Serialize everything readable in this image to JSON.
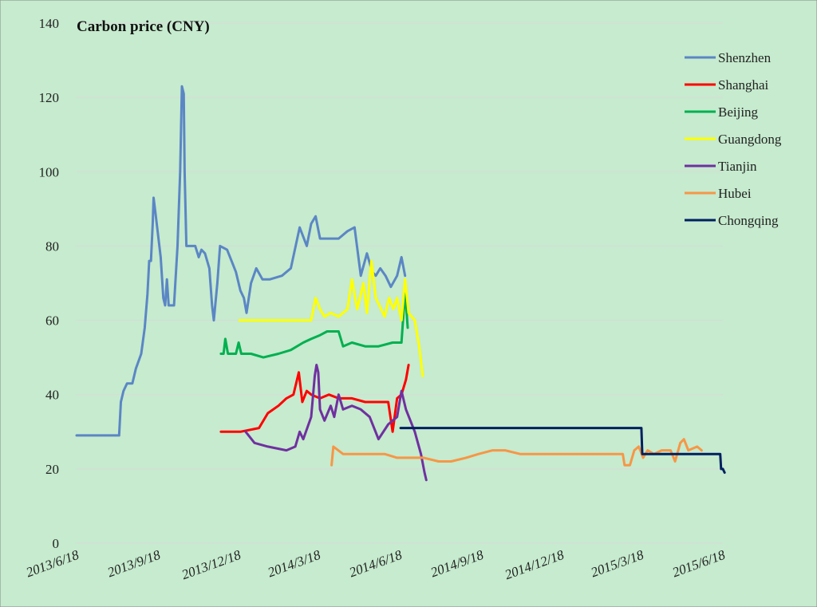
{
  "chart_data": {
    "type": "line",
    "title": "Carbon price (CNY)",
    "xlabel": "",
    "ylabel": "",
    "ylim": [
      0,
      140
    ],
    "yticks": [
      "0",
      "20",
      "40",
      "60",
      "80",
      "100",
      "120",
      "140"
    ],
    "xlim": [
      "2013/6/18",
      "2015/6/18"
    ],
    "xticks": [
      "2013/6/18",
      "2013/9/18",
      "2013/12/18",
      "2014/3/18",
      "2014/6/18",
      "2014/9/18",
      "2014/12/18",
      "2015/3/18",
      "2015/6/18"
    ],
    "grid": "horizontal",
    "legend_position": "top-right",
    "background_color": "#C6EBCE",
    "series": [
      {
        "name": "Shenzhen",
        "color": "#5B86C5",
        "points": [
          [
            "2013/6/18",
            29
          ],
          [
            "2013/8/5",
            29
          ],
          [
            "2013/8/7",
            38
          ],
          [
            "2013/8/10",
            41
          ],
          [
            "2013/8/14",
            43
          ],
          [
            "2013/8/20",
            43
          ],
          [
            "2013/8/24",
            47
          ],
          [
            "2013/8/30",
            51
          ],
          [
            "2013/9/3",
            58
          ],
          [
            "2013/9/6",
            67
          ],
          [
            "2013/9/8",
            76
          ],
          [
            "2013/9/10",
            76
          ],
          [
            "2013/9/12",
            86
          ],
          [
            "2013/9/13",
            93
          ],
          [
            "2013/9/15",
            89
          ],
          [
            "2013/9/18",
            83
          ],
          [
            "2013/9/21",
            77
          ],
          [
            "2013/9/24",
            66
          ],
          [
            "2013/9/26",
            64
          ],
          [
            "2013/9/28",
            71
          ],
          [
            "2013/9/30",
            64
          ],
          [
            "2013/10/6",
            64
          ],
          [
            "2013/10/10",
            80
          ],
          [
            "2013/10/13",
            100
          ],
          [
            "2013/10/15",
            123
          ],
          [
            "2013/10/17",
            121
          ],
          [
            "2013/10/18",
            100
          ],
          [
            "2013/10/20",
            80
          ],
          [
            "2013/10/25",
            80
          ],
          [
            "2013/10/30",
            80
          ],
          [
            "2013/11/3",
            77
          ],
          [
            "2013/11/6",
            79
          ],
          [
            "2013/11/10",
            78
          ],
          [
            "2013/11/15",
            74
          ],
          [
            "2013/11/18",
            64
          ],
          [
            "2013/11/20",
            60
          ],
          [
            "2013/11/24",
            70
          ],
          [
            "2013/11/27",
            80
          ],
          [
            "2013/12/5",
            79
          ],
          [
            "2013/12/10",
            76
          ],
          [
            "2013/12/15",
            73
          ],
          [
            "2013/12/20",
            68
          ],
          [
            "2013/12/24",
            66
          ],
          [
            "2013/12/27",
            62
          ],
          [
            "2014/1/1",
            70
          ],
          [
            "2014/1/7",
            74
          ],
          [
            "2014/1/14",
            71
          ],
          [
            "2014/1/22",
            71
          ],
          [
            "2014/2/5",
            72
          ],
          [
            "2014/2/15",
            74
          ],
          [
            "2014/2/25",
            85
          ],
          [
            "2014/3/5",
            80
          ],
          [
            "2014/3/10",
            86
          ],
          [
            "2014/3/15",
            88
          ],
          [
            "2014/3/20",
            82
          ],
          [
            "2014/3/28",
            82
          ],
          [
            "2014/4/10",
            82
          ],
          [
            "2014/4/20",
            84
          ],
          [
            "2014/4/28",
            85
          ],
          [
            "2014/5/5",
            72
          ],
          [
            "2014/5/12",
            78
          ],
          [
            "2014/5/18",
            73
          ],
          [
            "2014/5/22",
            72
          ],
          [
            "2014/5/27",
            74
          ],
          [
            "2014/6/2",
            72
          ],
          [
            "2014/6/8",
            69
          ],
          [
            "2014/6/15",
            72
          ],
          [
            "2014/6/20",
            77
          ],
          [
            "2014/6/24",
            72
          ]
        ]
      },
      {
        "name": "Shanghai",
        "color": "#FF0000",
        "points": [
          [
            "2013/11/28",
            30
          ],
          [
            "2013/12/5",
            30
          ],
          [
            "2013/12/20",
            30
          ],
          [
            "2014/1/10",
            31
          ],
          [
            "2014/1/20",
            35
          ],
          [
            "2014/2/1",
            37
          ],
          [
            "2014/2/10",
            39
          ],
          [
            "2014/2/18",
            40
          ],
          [
            "2014/2/24",
            46
          ],
          [
            "2014/2/28",
            38
          ],
          [
            "2014/3/5",
            41
          ],
          [
            "2014/3/10",
            40
          ],
          [
            "2014/3/20",
            39
          ],
          [
            "2014/3/30",
            40
          ],
          [
            "2014/4/10",
            39
          ],
          [
            "2014/4/25",
            39
          ],
          [
            "2014/5/10",
            38
          ],
          [
            "2014/5/25",
            38
          ],
          [
            "2014/6/5",
            38
          ],
          [
            "2014/6/10",
            30
          ],
          [
            "2014/6/15",
            39
          ],
          [
            "2014/6/20",
            40
          ],
          [
            "2014/6/25",
            44
          ],
          [
            "2014/6/28",
            48
          ]
        ]
      },
      {
        "name": "Beijing",
        "color": "#00B050",
        "points": [
          [
            "2013/11/28",
            51
          ],
          [
            "2013/12/1",
            51
          ],
          [
            "2013/12/3",
            55
          ],
          [
            "2013/12/6",
            51
          ],
          [
            "2013/12/15",
            51
          ],
          [
            "2013/12/18",
            54
          ],
          [
            "2013/12/21",
            51
          ],
          [
            "2014/1/1",
            51
          ],
          [
            "2014/1/15",
            50
          ],
          [
            "2014/2/1",
            51
          ],
          [
            "2014/2/15",
            52
          ],
          [
            "2014/3/1",
            54
          ],
          [
            "2014/3/10",
            55
          ],
          [
            "2014/3/20",
            56
          ],
          [
            "2014/3/28",
            57
          ],
          [
            "2014/4/10",
            57
          ],
          [
            "2014/4/15",
            53
          ],
          [
            "2014/4/25",
            54
          ],
          [
            "2014/5/10",
            53
          ],
          [
            "2014/5/25",
            53
          ],
          [
            "2014/6/10",
            54
          ],
          [
            "2014/6/20",
            54
          ],
          [
            "2014/6/24",
            68
          ],
          [
            "2014/6/27",
            58
          ]
        ]
      },
      {
        "name": "Guangdong",
        "color": "#FFFF00",
        "points": [
          [
            "2013/12/19",
            60
          ],
          [
            "2014/1/15",
            60
          ],
          [
            "2014/2/15",
            60
          ],
          [
            "2014/3/10",
            60
          ],
          [
            "2014/3/15",
            66
          ],
          [
            "2014/3/20",
            63
          ],
          [
            "2014/3/25",
            61
          ],
          [
            "2014/4/1",
            62
          ],
          [
            "2014/4/10",
            61
          ],
          [
            "2014/4/20",
            63
          ],
          [
            "2014/4/25",
            71
          ],
          [
            "2014/5/1",
            63
          ],
          [
            "2014/5/8",
            70
          ],
          [
            "2014/5/12",
            62
          ],
          [
            "2014/5/17",
            76
          ],
          [
            "2014/5/22",
            66
          ],
          [
            "2014/5/26",
            64
          ],
          [
            "2014/6/1",
            61
          ],
          [
            "2014/6/6",
            66
          ],
          [
            "2014/6/11",
            63
          ],
          [
            "2014/6/15",
            66
          ],
          [
            "2014/6/20",
            60
          ],
          [
            "2014/6/24",
            71
          ],
          [
            "2014/6/28",
            62
          ],
          [
            "2014/7/5",
            60
          ],
          [
            "2014/7/10",
            53
          ],
          [
            "2014/7/14",
            45
          ]
        ]
      },
      {
        "name": "Tianjin",
        "color": "#7030A0",
        "points": [
          [
            "2013/12/26",
            30
          ],
          [
            "2014/1/5",
            27
          ],
          [
            "2014/1/20",
            26
          ],
          [
            "2014/2/10",
            25
          ],
          [
            "2014/2/20",
            26
          ],
          [
            "2014/2/25",
            30
          ],
          [
            "2014/3/1",
            28
          ],
          [
            "2014/3/10",
            34
          ],
          [
            "2014/3/14",
            45
          ],
          [
            "2014/3/16",
            48
          ],
          [
            "2014/3/18",
            46
          ],
          [
            "2014/3/20",
            36
          ],
          [
            "2014/3/25",
            33
          ],
          [
            "2014/4/1",
            37
          ],
          [
            "2014/4/5",
            34
          ],
          [
            "2014/4/10",
            40
          ],
          [
            "2014/4/15",
            36
          ],
          [
            "2014/4/25",
            37
          ],
          [
            "2014/5/5",
            36
          ],
          [
            "2014/5/15",
            34
          ],
          [
            "2014/5/25",
            28
          ],
          [
            "2014/6/5",
            32
          ],
          [
            "2014/6/15",
            34
          ],
          [
            "2014/6/20",
            41
          ],
          [
            "2014/6/25",
            36
          ],
          [
            "2014/7/5",
            30
          ],
          [
            "2014/7/12",
            24
          ],
          [
            "2014/7/16",
            19
          ],
          [
            "2014/7/18",
            17
          ]
        ]
      },
      {
        "name": "Hubei",
        "color": "#F79646",
        "points": [
          [
            "2014/4/2",
            21
          ],
          [
            "2014/4/4",
            26
          ],
          [
            "2014/4/15",
            24
          ],
          [
            "2014/5/1",
            24
          ],
          [
            "2014/6/1",
            24
          ],
          [
            "2014/6/15",
            23
          ],
          [
            "2014/7/1",
            23
          ],
          [
            "2014/7/15",
            23
          ],
          [
            "2014/8/1",
            22
          ],
          [
            "2014/8/15",
            22
          ],
          [
            "2014/9/1",
            23
          ],
          [
            "2014/9/15",
            24
          ],
          [
            "2014/10/1",
            25
          ],
          [
            "2014/10/15",
            25
          ],
          [
            "2014/11/1",
            24
          ],
          [
            "2014/12/1",
            24
          ],
          [
            "2015/1/1",
            24
          ],
          [
            "2015/2/1",
            24
          ],
          [
            "2015/2/25",
            24
          ],
          [
            "2015/2/27",
            21
          ],
          [
            "2015/3/5",
            21
          ],
          [
            "2015/3/10",
            25
          ],
          [
            "2015/3/15",
            26
          ],
          [
            "2015/3/20",
            23
          ],
          [
            "2015/3/25",
            25
          ],
          [
            "2015/4/1",
            24
          ],
          [
            "2015/4/10",
            25
          ],
          [
            "2015/4/20",
            25
          ],
          [
            "2015/4/25",
            22
          ],
          [
            "2015/5/1",
            27
          ],
          [
            "2015/5/5",
            28
          ],
          [
            "2015/5/10",
            25
          ],
          [
            "2015/5/20",
            26
          ],
          [
            "2015/5/25",
            25
          ]
        ]
      },
      {
        "name": "Chongqing",
        "color": "#002060",
        "points": [
          [
            "2014/6/19",
            31
          ],
          [
            "2015/3/18",
            31
          ],
          [
            "2015/3/19",
            24
          ],
          [
            "2015/6/15",
            24
          ],
          [
            "2015/6/16",
            20
          ],
          [
            "2015/6/18",
            20
          ],
          [
            "2015/6/20",
            19
          ]
        ]
      }
    ]
  }
}
